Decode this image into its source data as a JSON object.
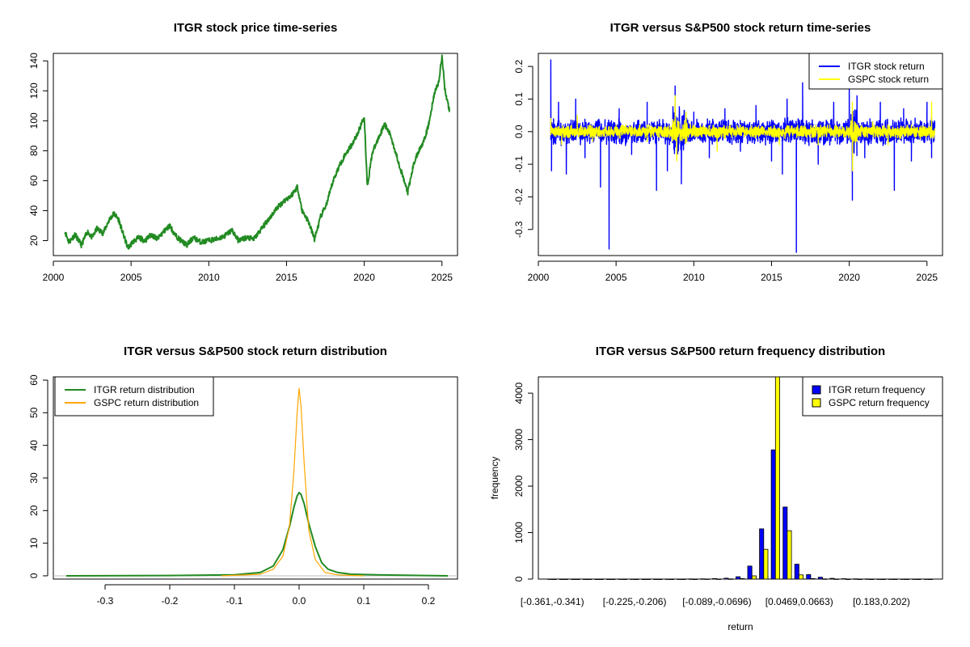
{
  "chart_data": [
    {
      "id": "price",
      "type": "line",
      "title": "ITGR stock price time-series",
      "xlabel": "",
      "ylabel": "",
      "xlim": [
        2000,
        2026
      ],
      "ylim": [
        10,
        145
      ],
      "x_ticks": [
        2000,
        2005,
        2010,
        2015,
        2020,
        2025
      ],
      "y_ticks": [
        20,
        40,
        60,
        80,
        100,
        120,
        140
      ],
      "series": [
        {
          "color": "#228B22",
          "points": [
            [
              2000.75,
              26
            ],
            [
              2001.0,
              19
            ],
            [
              2001.4,
              24
            ],
            [
              2001.8,
              17
            ],
            [
              2002.2,
              26
            ],
            [
              2002.5,
              22
            ],
            [
              2002.8,
              28
            ],
            [
              2003.2,
              25
            ],
            [
              2003.6,
              34
            ],
            [
              2003.9,
              38
            ],
            [
              2004.2,
              34
            ],
            [
              2004.5,
              24
            ],
            [
              2004.8,
              15
            ],
            [
              2005.1,
              19
            ],
            [
              2005.5,
              22
            ],
            [
              2005.9,
              20
            ],
            [
              2006.3,
              24
            ],
            [
              2006.7,
              21
            ],
            [
              2007.1,
              26
            ],
            [
              2007.5,
              30
            ],
            [
              2007.8,
              24
            ],
            [
              2008.2,
              20
            ],
            [
              2008.6,
              17
            ],
            [
              2009.0,
              22
            ],
            [
              2009.5,
              19
            ],
            [
              2010.0,
              20
            ],
            [
              2010.5,
              21
            ],
            [
              2011.0,
              23
            ],
            [
              2011.5,
              27
            ],
            [
              2011.9,
              20
            ],
            [
              2012.4,
              22
            ],
            [
              2012.9,
              21
            ],
            [
              2013.4,
              28
            ],
            [
              2013.9,
              35
            ],
            [
              2014.4,
              42
            ],
            [
              2014.9,
              47
            ],
            [
              2015.3,
              50
            ],
            [
              2015.7,
              56
            ],
            [
              2016.0,
              40
            ],
            [
              2016.4,
              33
            ],
            [
              2016.8,
              21
            ],
            [
              2017.2,
              36
            ],
            [
              2017.6,
              45
            ],
            [
              2018.0,
              60
            ],
            [
              2018.4,
              70
            ],
            [
              2018.8,
              78
            ],
            [
              2019.2,
              84
            ],
            [
              2019.6,
              92
            ],
            [
              2020.0,
              103
            ],
            [
              2020.2,
              56
            ],
            [
              2020.5,
              78
            ],
            [
              2020.9,
              88
            ],
            [
              2021.3,
              98
            ],
            [
              2021.7,
              90
            ],
            [
              2022.1,
              76
            ],
            [
              2022.5,
              62
            ],
            [
              2022.8,
              52
            ],
            [
              2023.2,
              72
            ],
            [
              2023.6,
              82
            ],
            [
              2023.9,
              88
            ],
            [
              2024.2,
              100
            ],
            [
              2024.5,
              118
            ],
            [
              2024.8,
              126
            ],
            [
              2025.0,
              143
            ],
            [
              2025.2,
              120
            ],
            [
              2025.5,
              106
            ]
          ]
        }
      ]
    },
    {
      "id": "returns",
      "type": "line",
      "title": "ITGR versus S&P500 stock return time-series",
      "xlabel": "",
      "ylabel": "",
      "xlim": [
        2000,
        2026
      ],
      "ylim": [
        -0.38,
        0.24
      ],
      "x_ticks": [
        2000,
        2005,
        2010,
        2015,
        2020,
        2025
      ],
      "y_ticks": [
        -0.3,
        -0.2,
        -0.1,
        0.0,
        0.1,
        0.2
      ],
      "legend": "top-right",
      "series": [
        {
          "name": "ITGR stock return",
          "color": "#0000FF",
          "points": [
            [
              2000.8,
              0.22
            ],
            [
              2000.85,
              -0.12
            ],
            [
              2001.3,
              0.09
            ],
            [
              2001.8,
              -0.13
            ],
            [
              2002.4,
              0.1
            ],
            [
              2003.0,
              -0.08
            ],
            [
              2004.0,
              -0.17
            ],
            [
              2004.55,
              -0.36
            ],
            [
              2005.2,
              0.07
            ],
            [
              2006.0,
              -0.07
            ],
            [
              2007.0,
              0.09
            ],
            [
              2007.6,
              -0.18
            ],
            [
              2008.3,
              -0.12
            ],
            [
              2008.8,
              0.14
            ],
            [
              2009.2,
              -0.16
            ],
            [
              2010.0,
              0.06
            ],
            [
              2011.0,
              -0.08
            ],
            [
              2012.0,
              0.07
            ],
            [
              2013.0,
              -0.06
            ],
            [
              2014.0,
              0.08
            ],
            [
              2015.0,
              -0.09
            ],
            [
              2015.7,
              -0.13
            ],
            [
              2016.0,
              0.1
            ],
            [
              2016.6,
              -0.37
            ],
            [
              2017.0,
              0.15
            ],
            [
              2018.0,
              -0.1
            ],
            [
              2019.0,
              0.09
            ],
            [
              2020.0,
              0.14
            ],
            [
              2020.2,
              -0.21
            ],
            [
              2020.5,
              0.11
            ],
            [
              2021.0,
              -0.08
            ],
            [
              2022.0,
              0.09
            ],
            [
              2022.9,
              -0.18
            ],
            [
              2023.5,
              0.07
            ],
            [
              2024.0,
              -0.09
            ],
            [
              2025.0,
              0.09
            ],
            [
              2025.3,
              -0.08
            ],
            [
              2025.5,
              0.03
            ]
          ]
        },
        {
          "name": "GSPC stock return",
          "color": "#FFFF00",
          "points": [
            [
              2000.8,
              0.04
            ],
            [
              2001.5,
              -0.04
            ],
            [
              2002.5,
              0.05
            ],
            [
              2003.5,
              -0.03
            ],
            [
              2005.0,
              0.02
            ],
            [
              2007.0,
              -0.03
            ],
            [
              2008.8,
              0.11
            ],
            [
              2008.9,
              -0.09
            ],
            [
              2009.5,
              0.06
            ],
            [
              2011.5,
              -0.06
            ],
            [
              2013.0,
              0.02
            ],
            [
              2015.5,
              -0.04
            ],
            [
              2018.0,
              -0.04
            ],
            [
              2020.2,
              0.09
            ],
            [
              2020.22,
              -0.12
            ],
            [
              2021.5,
              0.03
            ],
            [
              2022.5,
              -0.04
            ],
            [
              2024.0,
              0.02
            ],
            [
              2025.3,
              0.09
            ],
            [
              2025.5,
              0.01
            ]
          ]
        }
      ]
    },
    {
      "id": "density",
      "type": "line",
      "title": "ITGR versus S&P500 stock return distribution",
      "xlabel": "",
      "ylabel": "",
      "xlim": [
        -0.38,
        0.245
      ],
      "ylim": [
        -1,
        61
      ],
      "x_ticks": [
        -0.3,
        -0.2,
        -0.1,
        0.0,
        0.1,
        0.2
      ],
      "y_ticks": [
        0,
        10,
        20,
        30,
        40,
        50,
        60
      ],
      "legend": "top-left",
      "series": [
        {
          "name": "ITGR return distribution",
          "color": "#228B22",
          "points": [
            [
              -0.36,
              0
            ],
            [
              -0.2,
              0.1
            ],
            [
              -0.1,
              0.3
            ],
            [
              -0.06,
              1
            ],
            [
              -0.04,
              3
            ],
            [
              -0.025,
              8
            ],
            [
              -0.015,
              15
            ],
            [
              -0.008,
              21
            ],
            [
              -0.003,
              24.5
            ],
            [
              0.0,
              25.5
            ],
            [
              0.003,
              25
            ],
            [
              0.008,
              22
            ],
            [
              0.015,
              16
            ],
            [
              0.025,
              9
            ],
            [
              0.035,
              4
            ],
            [
              0.045,
              2
            ],
            [
              0.06,
              1
            ],
            [
              0.08,
              0.5
            ],
            [
              0.12,
              0.3
            ],
            [
              0.23,
              0
            ]
          ]
        },
        {
          "name": "GSPC return distribution",
          "color": "#FFA500",
          "points": [
            [
              -0.12,
              0
            ],
            [
              -0.06,
              0.5
            ],
            [
              -0.04,
              2
            ],
            [
              -0.025,
              6
            ],
            [
              -0.015,
              15
            ],
            [
              -0.008,
              32
            ],
            [
              -0.003,
              50
            ],
            [
              0.0,
              57.5
            ],
            [
              0.003,
              52
            ],
            [
              0.008,
              34
            ],
            [
              0.015,
              14
            ],
            [
              0.025,
              5
            ],
            [
              0.04,
              1
            ],
            [
              0.06,
              0.3
            ],
            [
              0.1,
              0
            ]
          ]
        }
      ]
    },
    {
      "id": "hist",
      "type": "bar",
      "title": "ITGR versus S&P500 return frequency distribution",
      "xlabel": "return",
      "ylabel": "frequency",
      "ylim": [
        0,
        4350
      ],
      "y_ticks": [
        0,
        1000,
        2000,
        3000,
        4000
      ],
      "x_tick_labels": [
        "[-0.361,-0.341)",
        "[-0.225,-0.206)",
        "[-0.089,-0.0696)",
        "[0.0469,0.0663)",
        "[0.183,0.202)"
      ],
      "x_tick_bins": [
        0,
        7,
        14,
        21,
        28
      ],
      "legend": "top-right",
      "series": [
        {
          "name": "ITGR return frequency",
          "color": "#0000FF",
          "values": [
            1,
            0,
            0,
            0,
            0,
            0,
            1,
            1,
            0,
            0,
            1,
            1,
            3,
            5,
            10,
            20,
            50,
            280,
            1080,
            2780,
            1550,
            320,
            95,
            40,
            15,
            8,
            5,
            3,
            2,
            1,
            1,
            1,
            1
          ]
        },
        {
          "name": "GSPC return frequency",
          "color": "#FFFF00",
          "values": [
            0,
            0,
            0,
            0,
            0,
            0,
            0,
            0,
            0,
            0,
            0,
            0,
            0,
            1,
            2,
            4,
            10,
            70,
            640,
            4350,
            1040,
            90,
            10,
            3,
            1,
            0,
            0,
            0,
            0,
            0,
            0,
            0,
            0
          ]
        }
      ]
    }
  ]
}
